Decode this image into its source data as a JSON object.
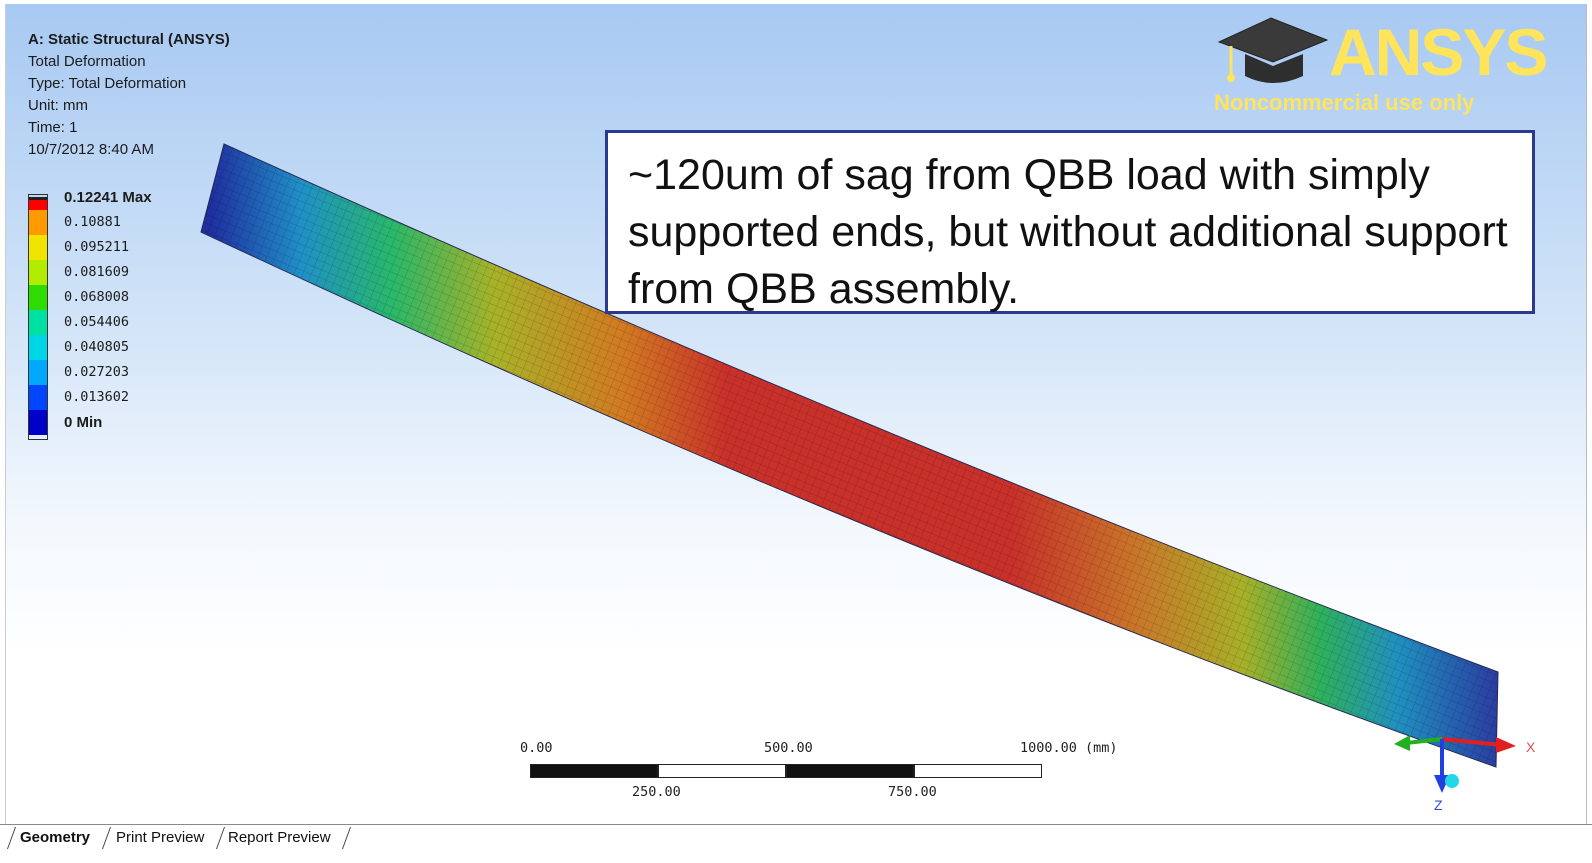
{
  "info": {
    "title": "A: Static Structural (ANSYS)",
    "result": "Total Deformation",
    "type": "Type: Total Deformation",
    "unit": "Unit: mm",
    "time": "Time: 1",
    "date": "10/7/2012 8:40 AM"
  },
  "legend": [
    {
      "label": "0.12241 Max",
      "color": "#ff0000",
      "bold": true
    },
    {
      "label": "0.10881",
      "color": "#ff9a00"
    },
    {
      "label": "0.095211",
      "color": "#f1e400"
    },
    {
      "label": "0.081609",
      "color": "#b2ec00"
    },
    {
      "label": "0.068008",
      "color": "#2edc00"
    },
    {
      "label": "0.054406",
      "color": "#00e0a0"
    },
    {
      "label": "0.040805",
      "color": "#00d5e8"
    },
    {
      "label": "0.027203",
      "color": "#00a8ff"
    },
    {
      "label": "0.013602",
      "color": "#0046ff"
    },
    {
      "label": "0 Min",
      "color": "#0000c8",
      "bold": true
    }
  ],
  "callout": "~120um of sag from QBB load with simply supported ends, but without additional support from QBB assembly.",
  "logo": {
    "brand": "ANSYS",
    "note": "Noncommercial use only",
    "color": "#ffe45c"
  },
  "scale_bar": {
    "top_labels": [
      "0.00",
      "500.00",
      "1000.00 (mm)"
    ],
    "bottom_labels": [
      "250.00",
      "750.00"
    ]
  },
  "triad": {
    "x": "X",
    "z": "Z"
  },
  "tabs": [
    {
      "label": "Geometry",
      "active": true
    },
    {
      "label": "Print Preview"
    },
    {
      "label": "Report Preview"
    }
  ]
}
